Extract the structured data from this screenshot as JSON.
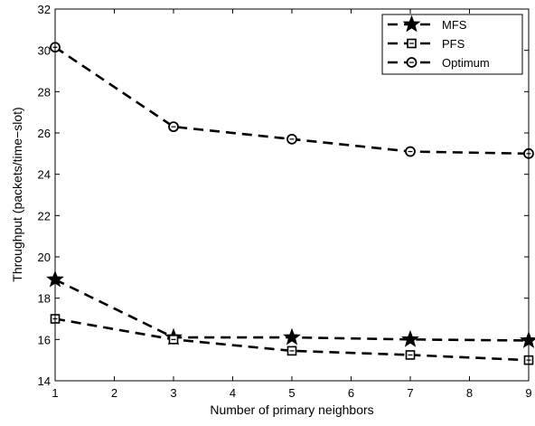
{
  "chart_data": {
    "type": "line",
    "title": "",
    "xlabel": "Number of primary neighbors",
    "ylabel": "Throughput (packets/time−slot)",
    "xlim": [
      1,
      9
    ],
    "ylim": [
      14,
      32
    ],
    "xticks": [
      "1",
      "2",
      "3",
      "4",
      "5",
      "6",
      "7",
      "8",
      "9"
    ],
    "yticks": [
      "14",
      "16",
      "18",
      "20",
      "22",
      "24",
      "26",
      "28",
      "30",
      "32"
    ],
    "grid": false,
    "legend_position": "top-right",
    "line_style": "dashed",
    "line_color": "#000000",
    "series": [
      {
        "name": "MFS",
        "marker": "star",
        "x": [
          1,
          3,
          5,
          7,
          9
        ],
        "y": [
          18.9,
          16.1,
          16.1,
          16.0,
          15.95
        ]
      },
      {
        "name": "PFS",
        "marker": "square",
        "x": [
          1,
          3,
          5,
          7,
          9
        ],
        "y": [
          17.0,
          16.0,
          15.45,
          15.25,
          15.0
        ]
      },
      {
        "name": "Optimum",
        "marker": "circle",
        "x": [
          1,
          3,
          5,
          7,
          9
        ],
        "y": [
          30.15,
          26.3,
          25.7,
          25.1,
          25.0
        ]
      }
    ]
  }
}
